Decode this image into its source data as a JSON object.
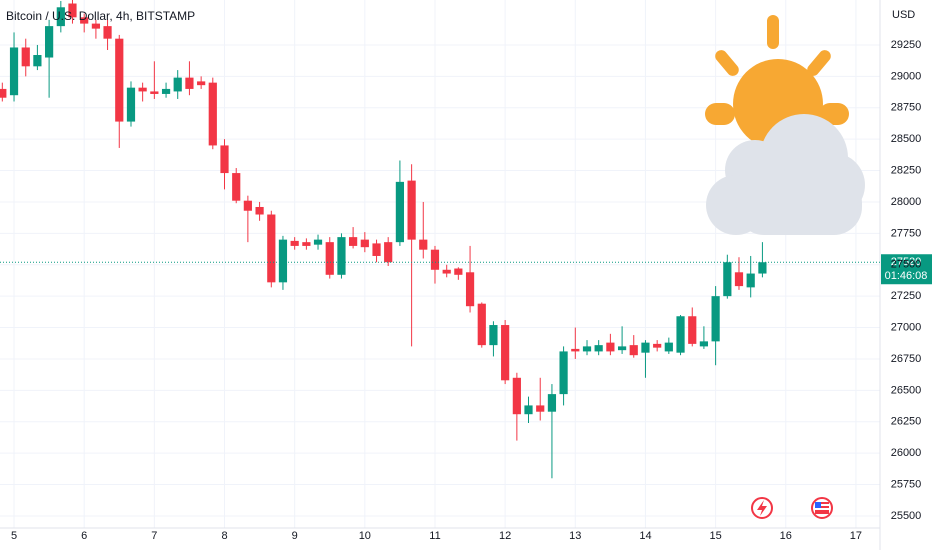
{
  "chart_data": {
    "type": "candlestick",
    "title": "Bitcoin / U.S. Dollar, 4h, BITSTAMP",
    "currency": "USD",
    "up_color": "#089981",
    "down_color": "#f23645",
    "grid": true,
    "x": [
      4.833,
      5,
      5.167,
      5.333,
      5.5,
      5.667,
      5.833,
      6,
      6.167,
      6.333,
      6.5,
      6.667,
      6.833,
      7,
      7.167,
      7.333,
      7.5,
      7.667,
      7.833,
      8,
      8.167,
      8.333,
      8.5,
      8.667,
      8.833,
      9,
      9.167,
      9.333,
      9.5,
      9.667,
      9.833,
      10,
      10.167,
      10.333,
      10.5,
      10.667,
      10.833,
      11,
      11.167,
      11.333,
      11.5,
      11.667,
      11.833,
      12,
      12.167,
      12.333,
      12.5,
      12.667,
      12.833,
      13,
      13.167,
      13.333,
      13.5,
      13.667,
      13.833,
      14,
      14.167,
      14.333,
      14.5,
      14.667,
      14.833,
      15,
      15.167,
      15.333,
      15.5,
      15.667
    ],
    "open": [
      28900,
      28850,
      29230,
      29080,
      29150,
      29400,
      29580,
      29470,
      29420,
      29400,
      29300,
      28640,
      28910,
      28880,
      28860,
      28880,
      28990,
      28960,
      28950,
      28450,
      28230,
      28010,
      27960,
      27900,
      27360,
      27690,
      27680,
      27660,
      27680,
      27420,
      27720,
      27700,
      27670,
      27680,
      27680,
      28170,
      27700,
      27620,
      27460,
      27470,
      27440,
      27190,
      26860,
      27020,
      26600,
      26310,
      26380,
      26330,
      26470,
      26830,
      26810,
      26810,
      26880,
      26820,
      26860,
      26800,
      26870,
      26810,
      26800,
      27090,
      26850,
      26890,
      27250,
      27440,
      27320,
      27430
    ],
    "high": [
      28950,
      29350,
      29300,
      29250,
      29450,
      29600,
      29620,
      29500,
      29450,
      29450,
      29330,
      28960,
      28950,
      29120,
      28950,
      29050,
      29120,
      29000,
      28990,
      28500,
      28270,
      28050,
      28000,
      27930,
      27730,
      27720,
      27710,
      27740,
      27720,
      27750,
      27800,
      27760,
      27700,
      27720,
      28330,
      28300,
      28000,
      27650,
      27500,
      27480,
      27650,
      27200,
      27050,
      27060,
      26640,
      26450,
      26600,
      26550,
      26850,
      27000,
      26900,
      26900,
      26950,
      27010,
      26940,
      26900,
      26900,
      26920,
      27100,
      27160,
      27010,
      27330,
      27580,
      27560,
      27570,
      27680
    ],
    "low": [
      28800,
      28800,
      29000,
      29050,
      28830,
      29350,
      29420,
      29350,
      29300,
      29210,
      28430,
      28600,
      28800,
      28820,
      28830,
      28820,
      28850,
      28900,
      28420,
      28100,
      27990,
      27680,
      27850,
      27320,
      27300,
      27620,
      27620,
      27620,
      27390,
      27390,
      27630,
      27600,
      27520,
      27490,
      27650,
      26850,
      27550,
      27350,
      27400,
      27380,
      27120,
      26840,
      26770,
      26550,
      26100,
      26240,
      26260,
      25800,
      26380,
      26750,
      26780,
      26780,
      26780,
      26790,
      26760,
      26600,
      26810,
      26790,
      26780,
      26850,
      26830,
      26700,
      27230,
      27300,
      27240,
      27400
    ],
    "close": [
      28830,
      29230,
      29080,
      29170,
      29400,
      29550,
      29470,
      29420,
      29380,
      29300,
      28640,
      28910,
      28880,
      28860,
      28900,
      28990,
      28900,
      28930,
      28450,
      28230,
      28010,
      27930,
      27900,
      27360,
      27700,
      27650,
      27650,
      27700,
      27420,
      27720,
      27650,
      27640,
      27570,
      27520,
      28160,
      27700,
      27620,
      27460,
      27430,
      27420,
      27170,
      26860,
      27020,
      26580,
      26310,
      26380,
      26330,
      26470,
      26810,
      26810,
      26850,
      26860,
      26810,
      26850,
      26780,
      26880,
      26840,
      26880,
      27090,
      26870,
      26890,
      27250,
      27520,
      27330,
      27430,
      27520
    ],
    "xlim": [
      4.8,
      17.343
    ],
    "xticks": [
      5,
      6,
      7,
      8,
      9,
      10,
      11,
      12,
      13,
      14,
      15,
      16,
      17
    ],
    "ylim": [
      25404,
      29608
    ],
    "yticks": [
      25500,
      25750,
      26000,
      26250,
      26500,
      26750,
      27000,
      27250,
      27500,
      27750,
      28000,
      28250,
      28500,
      28750,
      29000,
      29250
    ],
    "last_price": 27520,
    "countdown": "01:46:08"
  }
}
